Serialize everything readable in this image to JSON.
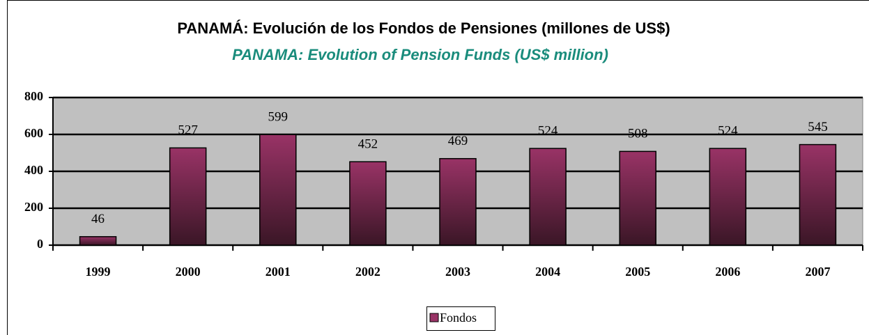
{
  "chart_data": {
    "type": "bar",
    "title": "PANAMÁ: Evolución de los Fondos de Pensiones (millones de US$)",
    "subtitle": "PANAMA: Evolution of Pension Funds (US$ million)",
    "categories": [
      "1999",
      "2000",
      "2001",
      "2002",
      "2003",
      "2004",
      "2005",
      "2006",
      "2007"
    ],
    "series": [
      {
        "name": "Fondos",
        "color": "#993366",
        "values": [
          46,
          527,
          599,
          452,
          469,
          524,
          508,
          524,
          545
        ]
      }
    ],
    "ylim": [
      0,
      800
    ],
    "yticks": [
      0,
      200,
      400,
      600,
      800
    ],
    "grid": true,
    "legend": "bottom"
  }
}
